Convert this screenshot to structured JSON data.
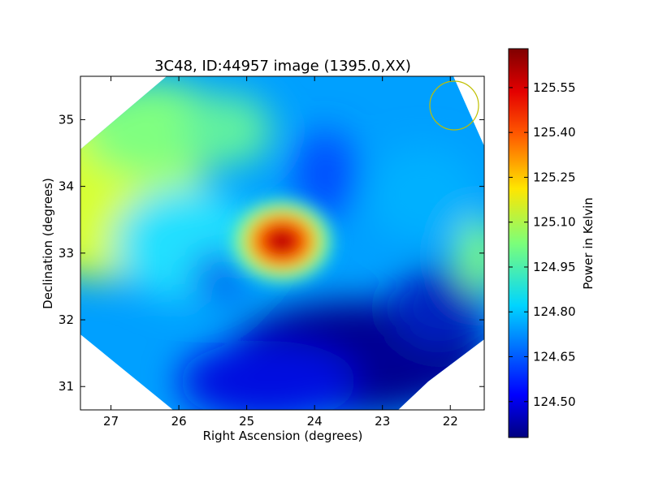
{
  "chart_data": {
    "type": "heatmap",
    "title": "3C48, ID:44957 image (1395.0,XX)",
    "xlabel": "Right Ascension (degrees)",
    "ylabel": "Declination (degrees)",
    "xlim": [
      27.45,
      21.5
    ],
    "ylim": [
      30.65,
      35.65
    ],
    "x_axis_inverted": true,
    "x_ticks": [
      27,
      26,
      25,
      24,
      23,
      22
    ],
    "y_ticks": [
      31,
      32,
      33,
      34,
      35
    ],
    "colorbar": {
      "label": "Power in Kelvin",
      "colormap": "jet",
      "range": [
        124.38,
        125.68
      ],
      "ticks": [
        124.5,
        124.65,
        124.8,
        124.95,
        125.1,
        125.25,
        125.4,
        125.55
      ],
      "tick_labels": [
        "124.50",
        "124.65",
        "124.80",
        "124.95",
        "125.10",
        "125.25",
        "125.40",
        "125.55"
      ]
    },
    "features": [
      {
        "name": "peak",
        "ra": 24.45,
        "dec": 33.15,
        "value": 125.66
      },
      {
        "name": "left-warm-region",
        "ra": 27.3,
        "dec": 33.8,
        "value": 125.18
      },
      {
        "name": "right-edge-source",
        "ra": 21.6,
        "dec": 32.95,
        "value": 124.98
      },
      {
        "name": "depression-lower",
        "ra": 23.8,
        "dec": 31.1,
        "value": 124.4
      }
    ],
    "beam": {
      "ra": 21.9,
      "dec": 35.2,
      "color": "#bfbf00"
    },
    "grid": false,
    "legend": "none"
  },
  "colors": {
    "beam": "#bfbf00",
    "axes": "#000000"
  }
}
